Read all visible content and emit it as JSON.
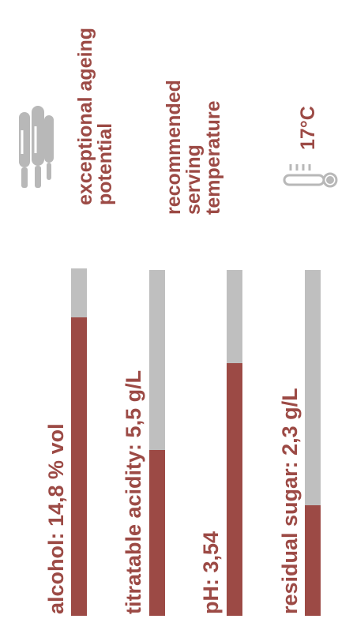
{
  "features": {
    "ageing_label": "exceptional ageing potential",
    "serving": {
      "label_line1": "recommended",
      "label_line2": "serving",
      "label_line3": "temperature",
      "temperature": "17°C"
    }
  },
  "stats": [
    {
      "label": "alcohol:  14,8 % vol",
      "level_fraction": 0.86
    },
    {
      "label": "titratable acidity: 5,5 g/L",
      "level_fraction": 0.48
    },
    {
      "label": "pH: 3,54",
      "level_fraction": 0.73
    },
    {
      "label": "residual sugar: 2,3 g/L",
      "level_fraction": 0.32
    }
  ],
  "colors": {
    "accent": "#9c4a45",
    "track": "#bfbfbf",
    "icon": "#b8b8b8"
  }
}
